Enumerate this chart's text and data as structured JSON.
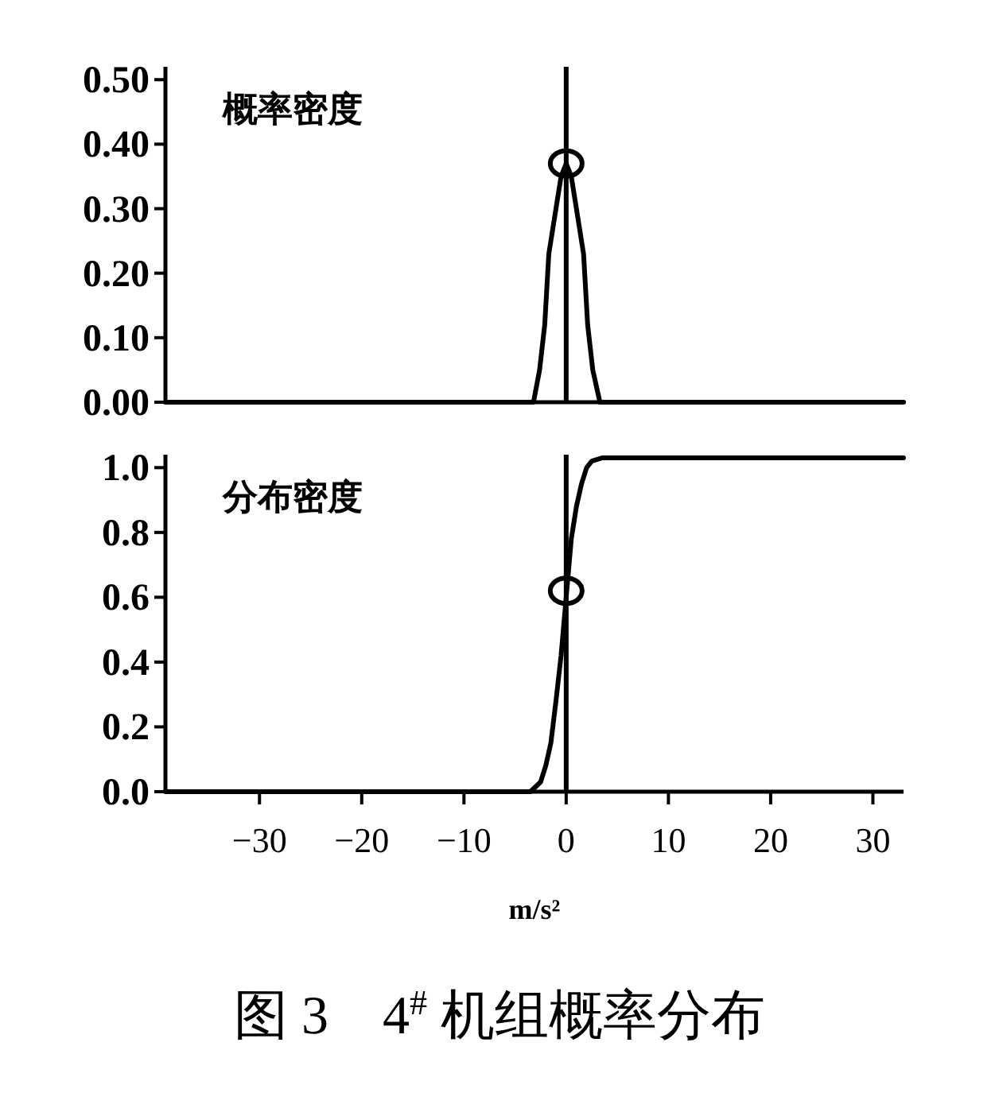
{
  "chart_data": [
    {
      "type": "line",
      "title": "概率密度",
      "tick_labels": "y",
      "xlim": [
        -39.2,
        33
      ],
      "ylim": [
        0,
        0.52
      ],
      "yticks": [
        {
          "value": 0,
          "label": "0.00"
        },
        {
          "value": 0.1,
          "label": "0.10"
        },
        {
          "value": 0.2,
          "label": "0.20"
        },
        {
          "value": 0.3,
          "label": "0.30"
        },
        {
          "value": 0.4,
          "label": "0.40"
        },
        {
          "value": 0.5,
          "label": "0.50"
        }
      ],
      "ref_lines": [
        {
          "axis": "x",
          "value": 0,
          "color": "#000000"
        }
      ],
      "series": [
        {
          "color": "#000000",
          "marker": "none",
          "x": [
            -39.2,
            -3.2,
            -2.6,
            -2.1,
            -1.7,
            -1.0,
            -0.5,
            0,
            0.5,
            1.0,
            1.7,
            2.1,
            2.6,
            3.3,
            33
          ],
          "values": [
            0,
            0,
            0.05,
            0.12,
            0.23,
            0.3,
            0.35,
            0.37,
            0.35,
            0.3,
            0.23,
            0.12,
            0.05,
            0,
            0
          ]
        },
        {
          "type": "scatter",
          "color": "#000000",
          "marker": "circle",
          "x": [
            0
          ],
          "values": [
            0.37
          ]
        }
      ]
    },
    {
      "type": "line",
      "title": "分布密度",
      "xlabel": "m/s²",
      "xlim": [
        -39.2,
        33
      ],
      "ylim": [
        0,
        1.04
      ],
      "xticks": [
        {
          "value": -30,
          "label": "−30"
        },
        {
          "value": -20,
          "label": "−20"
        },
        {
          "value": -10,
          "label": "−10"
        },
        0,
        10,
        20,
        30
      ],
      "yticks": [
        {
          "value": 0,
          "label": "0.0"
        },
        {
          "value": 0.2,
          "label": "0.2"
        },
        {
          "value": 0.4,
          "label": "0.4"
        },
        {
          "value": 0.6,
          "label": "0.6"
        },
        {
          "value": 0.8,
          "label": "0.8"
        },
        {
          "value": 1,
          "label": "1.0"
        }
      ],
      "ref_lines": [
        {
          "axis": "x",
          "value": 0,
          "color": "#000000"
        }
      ],
      "annotations": [
        "图 3　4$^{#}$ 机组概率分布"
      ],
      "series": [
        {
          "color": "#000000",
          "marker": "none",
          "x": [
            -39.2,
            -3.5,
            -2.5,
            -2,
            -1.5,
            -1,
            -0.5,
            0,
            0.5,
            1,
            1.5,
            2,
            2.5,
            3.5,
            33
          ],
          "values": [
            0,
            0,
            0.03,
            0.08,
            0.15,
            0.28,
            0.42,
            0.6,
            0.78,
            0.88,
            0.95,
            1.0,
            1.02,
            1.03,
            1.03
          ]
        },
        {
          "type": "scatter",
          "color": "#000000",
          "marker": "circle",
          "x": [
            0
          ],
          "values": [
            0.62
          ]
        }
      ]
    }
  ]
}
